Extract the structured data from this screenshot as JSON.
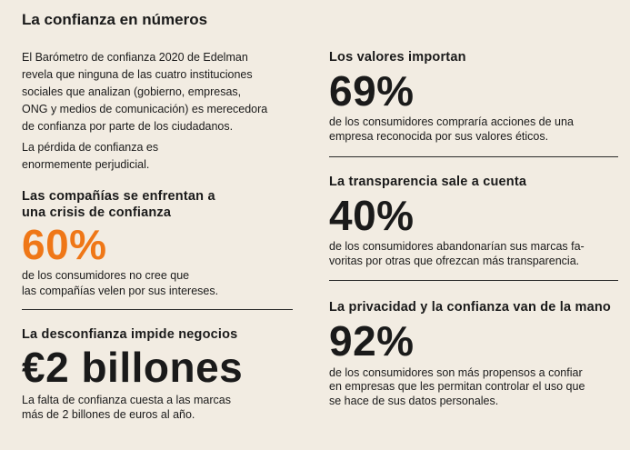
{
  "header": {
    "title": "La confianza en números"
  },
  "intro": {
    "paragraphs": [
      [
        "El Barómetro de confianza 2020 de Edelman",
        "revela que ninguna de las cuatro instituciones",
        "sociales que analizan (gobierno, empresas,",
        "ONG y medios de comunicación) es merecedora",
        "de confianza por parte de los ciudadanos."
      ],
      [
        "La pérdida de confianza es",
        "enormemente perjudicial."
      ]
    ]
  },
  "stats": [
    {
      "heading": [
        "Las compañías se enfrentan a",
        "una crisis de confianza"
      ],
      "figure": "60%",
      "description": [
        "de los consumidores no cree que",
        "las compañías velen por sus intereses."
      ]
    },
    {
      "heading": [
        "La desconfianza impide negocios"
      ],
      "figure": "€2 billones",
      "description": [
        "La falta de confianza cuesta a las marcas",
        "más de 2 billones de euros al año."
      ]
    },
    {
      "heading": [
        "Los valores importan"
      ],
      "figure": "69%",
      "description": [
        "de los consumidores compraría acciones de una",
        "empresa reconocida por sus valores éticos."
      ]
    },
    {
      "heading": [
        "La transparencia sale a cuenta"
      ],
      "figure": "40%",
      "description": [
        "de los consumidores abandonarían sus marcas fa-",
        "voritas por otras que ofrezcan más transparencia."
      ]
    },
    {
      "heading": [
        "La privacidad y la confianza van de la mano"
      ],
      "figure": "92%",
      "description": [
        "de los consumidores son más propensos a confiar",
        "en empresas que les permitan controlar el uso que",
        "se hace de sus datos personales."
      ]
    }
  ]
}
